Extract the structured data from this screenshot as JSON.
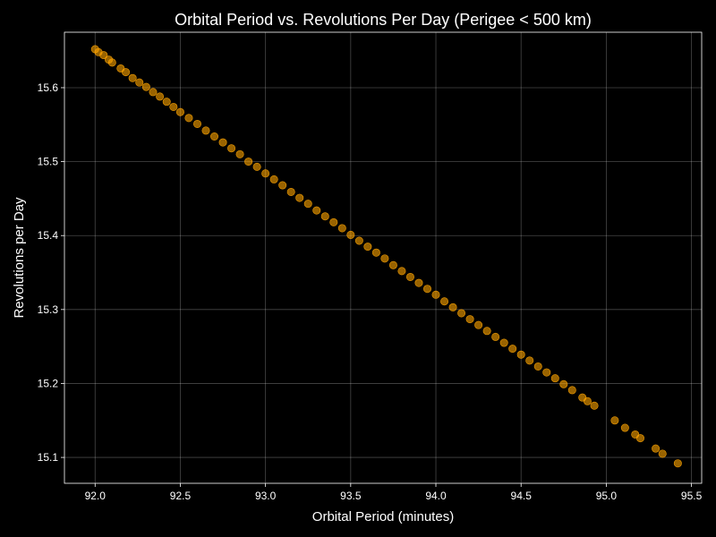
{
  "chart_data": {
    "type": "scatter",
    "title": "Orbital Period vs. Revolutions Per Day (Perigee < 500 km)",
    "xlabel": "Orbital Period (minutes)",
    "ylabel": "Revolutions per Day",
    "xlim": [
      91.82,
      95.56
    ],
    "ylim": [
      15.065,
      15.675
    ],
    "xticks": [
      "92.0",
      "92.5",
      "93.0",
      "93.5",
      "94.0",
      "94.5",
      "95.0",
      "95.5"
    ],
    "yticks": [
      "15.1",
      "15.2",
      "15.3",
      "15.4",
      "15.5",
      "15.6"
    ],
    "grid": true,
    "colors": {
      "point": "#FFA500",
      "background": "#000000",
      "text": "#ffffff"
    },
    "series": [
      {
        "points": [
          [
            92.0,
            15.652
          ],
          [
            92.02,
            15.648
          ],
          [
            92.05,
            15.644
          ],
          [
            92.08,
            15.638
          ],
          [
            92.1,
            15.634
          ],
          [
            92.15,
            15.626
          ],
          [
            92.18,
            15.621
          ],
          [
            92.22,
            15.613
          ],
          [
            92.26,
            15.607
          ],
          [
            92.3,
            15.601
          ],
          [
            92.34,
            15.594
          ],
          [
            92.38,
            15.588
          ],
          [
            92.42,
            15.581
          ],
          [
            92.46,
            15.574
          ],
          [
            92.5,
            15.567
          ],
          [
            92.55,
            15.559
          ],
          [
            92.6,
            15.551
          ],
          [
            92.65,
            15.542
          ],
          [
            92.7,
            15.534
          ],
          [
            92.75,
            15.526
          ],
          [
            92.8,
            15.518
          ],
          [
            92.85,
            15.51
          ],
          [
            92.9,
            15.5
          ],
          [
            92.95,
            15.493
          ],
          [
            93.0,
            15.484
          ],
          [
            93.05,
            15.476
          ],
          [
            93.1,
            15.468
          ],
          [
            93.15,
            15.459
          ],
          [
            93.2,
            15.451
          ],
          [
            93.25,
            15.443
          ],
          [
            93.3,
            15.434
          ],
          [
            93.35,
            15.426
          ],
          [
            93.4,
            15.418
          ],
          [
            93.45,
            15.41
          ],
          [
            93.5,
            15.401
          ],
          [
            93.55,
            15.393
          ],
          [
            93.6,
            15.385
          ],
          [
            93.65,
            15.377
          ],
          [
            93.7,
            15.369
          ],
          [
            93.75,
            15.36
          ],
          [
            93.8,
            15.352
          ],
          [
            93.85,
            15.344
          ],
          [
            93.9,
            15.336
          ],
          [
            93.95,
            15.328
          ],
          [
            94.0,
            15.32
          ],
          [
            94.05,
            15.311
          ],
          [
            94.1,
            15.303
          ],
          [
            94.15,
            15.295
          ],
          [
            94.2,
            15.287
          ],
          [
            94.25,
            15.279
          ],
          [
            94.3,
            15.271
          ],
          [
            94.35,
            15.263
          ],
          [
            94.4,
            15.255
          ],
          [
            94.45,
            15.247
          ],
          [
            94.5,
            15.239
          ],
          [
            94.55,
            15.231
          ],
          [
            94.6,
            15.223
          ],
          [
            94.65,
            15.215
          ],
          [
            94.7,
            15.207
          ],
          [
            94.75,
            15.199
          ],
          [
            94.8,
            15.191
          ],
          [
            94.86,
            15.181
          ],
          [
            94.89,
            15.176
          ],
          [
            94.93,
            15.17
          ],
          [
            95.05,
            15.15
          ],
          [
            95.11,
            15.14
          ],
          [
            95.17,
            15.131
          ],
          [
            95.2,
            15.126
          ],
          [
            95.29,
            15.112
          ],
          [
            95.33,
            15.105
          ],
          [
            95.42,
            15.092
          ]
        ]
      }
    ]
  }
}
